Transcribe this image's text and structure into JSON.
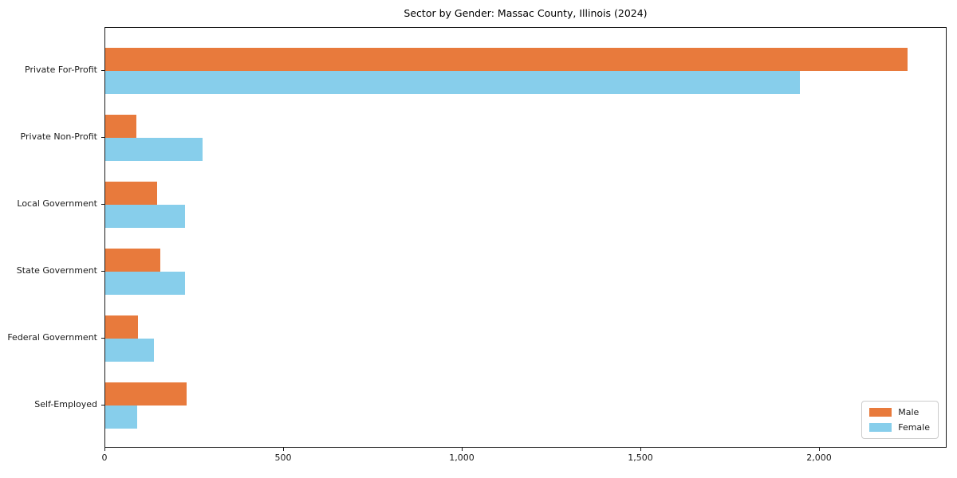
{
  "chart_data": {
    "type": "bar",
    "orientation": "horizontal",
    "title": "Sector by Gender: Massac County, Illinois (2024)",
    "categories": [
      "Private For-Profit",
      "Private Non-Profit",
      "Local Government",
      "State Government",
      "Federal Government",
      "Self-Employed"
    ],
    "series": [
      {
        "name": "Male",
        "color": "#E87A3C",
        "values": [
          2245,
          88,
          145,
          155,
          92,
          228
        ]
      },
      {
        "name": "Female",
        "color": "#87CEEB",
        "values": [
          1945,
          273,
          224,
          224,
          136,
          89
        ]
      }
    ],
    "xlabel": "",
    "ylabel": "",
    "xlim": [
      0,
      2357
    ],
    "xticks": [
      {
        "value": 0,
        "label": "0"
      },
      {
        "value": 500,
        "label": "500"
      },
      {
        "value": 1000,
        "label": "1,000"
      },
      {
        "value": 1500,
        "label": "1,500"
      },
      {
        "value": 2000,
        "label": "2,000"
      }
    ],
    "grid": false,
    "legend_position": "lower right",
    "colors": {
      "axis": "#1a1a1a",
      "background": "#ffffff",
      "legend_border": "#cccccc"
    }
  }
}
